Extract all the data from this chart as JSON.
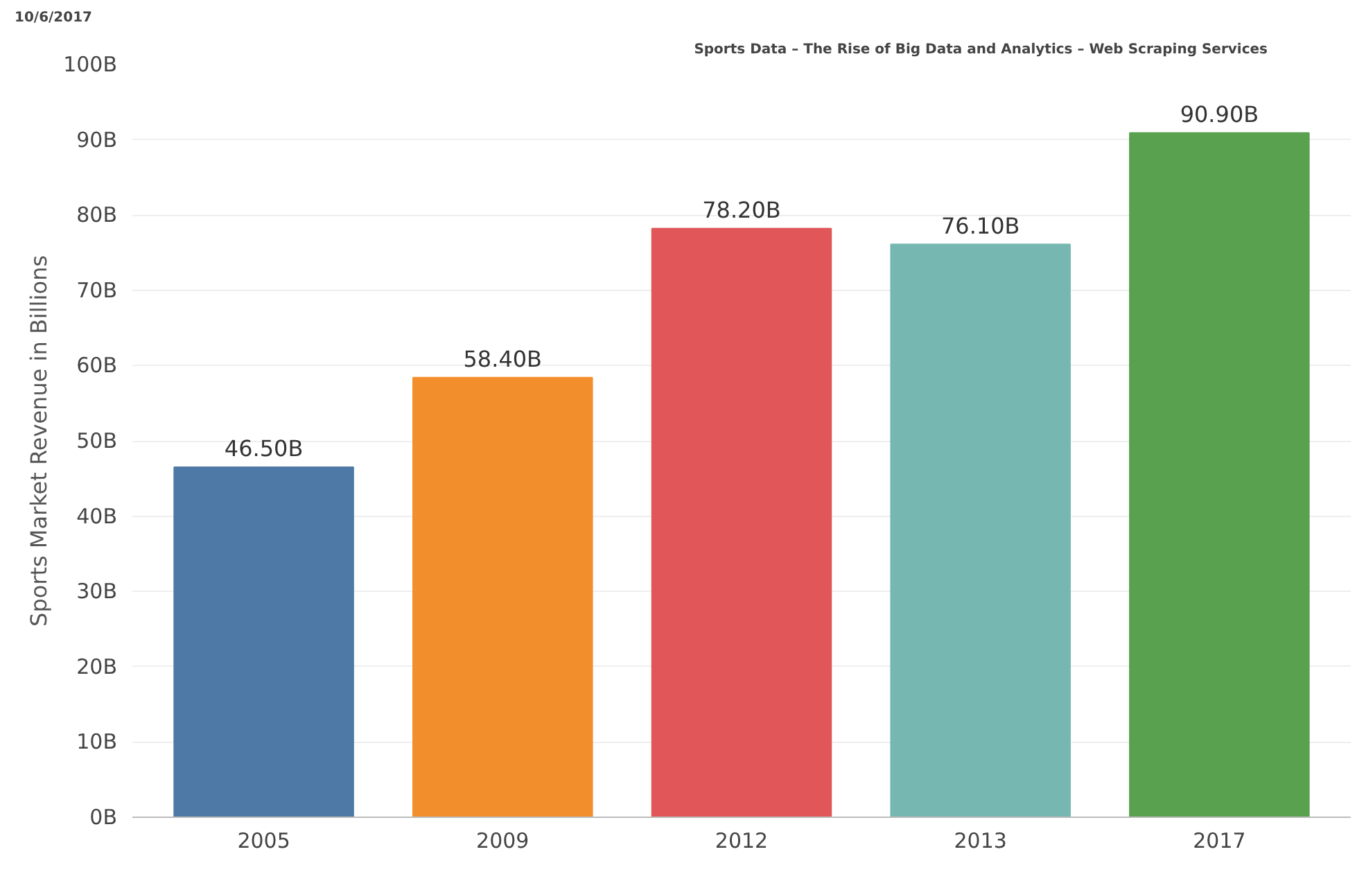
{
  "chart_data": {
    "type": "bar",
    "title": "Sports Data – The Rise of Big Data and Analytics – Web Scraping Services",
    "annotations": [
      "10/6/2017"
    ],
    "ylabel": "Sports Market Revenue in Billions",
    "categories": [
      "2005",
      "2009",
      "2012",
      "2013",
      "2017"
    ],
    "values": [
      46.5,
      58.4,
      78.2,
      76.1,
      90.9
    ],
    "colors": [
      "#4e79a7",
      "#f28e2b",
      "#e15759",
      "#76b7b2",
      "#59a14f"
    ],
    "value_labels": [
      "46.50B",
      "58.40B",
      "78.20B",
      "76.10B",
      "90.90B"
    ],
    "ylim": [
      0,
      100
    ],
    "yticks": [
      {
        "value": 0,
        "label": "0B"
      },
      {
        "value": 10,
        "label": "10B"
      },
      {
        "value": 20,
        "label": "20B"
      },
      {
        "value": 30,
        "label": "30B"
      },
      {
        "value": 40,
        "label": "40B"
      },
      {
        "value": 50,
        "label": "50B"
      },
      {
        "value": 60,
        "label": "60B"
      },
      {
        "value": 70,
        "label": "70B"
      },
      {
        "value": 80,
        "label": "80B"
      },
      {
        "value": 90,
        "label": "90B"
      },
      {
        "value": 100,
        "label": "100B"
      }
    ],
    "grid": "y"
  }
}
